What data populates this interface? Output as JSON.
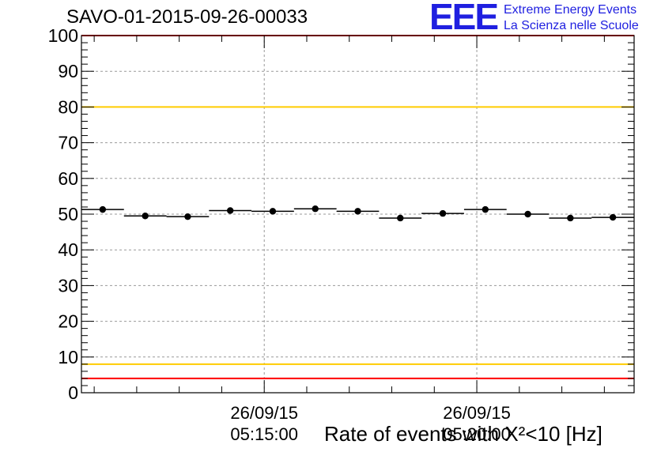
{
  "title": "SAVO-01-2015-09-26-00033",
  "brand": {
    "logo": "EEE",
    "line1": "Extreme Energy Events",
    "line2": "La Scienza nelle Scuole",
    "color": "#1f1fe0"
  },
  "axis_title": "Rate of events with X²<10 [Hz]",
  "chart_data": {
    "type": "scatter",
    "title": "SAVO-01-2015-09-26-00033",
    "xlabel": "",
    "ylabel": "Rate of events with X²<10 [Hz]",
    "ylim": [
      0,
      100
    ],
    "yticks": [
      0,
      10,
      20,
      30,
      40,
      50,
      60,
      70,
      80,
      90,
      100
    ],
    "xlim": [
      "05:10:42",
      "05:23:42"
    ],
    "xticks": [
      {
        "date": "26/09/15",
        "time": "05:15:00"
      },
      {
        "date": "26/09/15",
        "time": "05:20:00"
      }
    ],
    "grid": true,
    "bin_width_s": 60,
    "points": [
      {
        "x": "05:11:12",
        "y": 51.3
      },
      {
        "x": "05:12:12",
        "y": 49.5
      },
      {
        "x": "05:13:12",
        "y": 49.3
      },
      {
        "x": "05:14:12",
        "y": 51.0
      },
      {
        "x": "05:15:12",
        "y": 50.8
      },
      {
        "x": "05:16:12",
        "y": 51.5
      },
      {
        "x": "05:17:12",
        "y": 50.8
      },
      {
        "x": "05:18:12",
        "y": 48.9
      },
      {
        "x": "05:19:12",
        "y": 50.2
      },
      {
        "x": "05:20:12",
        "y": 51.3
      },
      {
        "x": "05:21:12",
        "y": 50.0
      },
      {
        "x": "05:22:12",
        "y": 48.9
      },
      {
        "x": "05:23:12",
        "y": 49.1
      }
    ],
    "reference_lines": [
      {
        "y": 100,
        "color": "#ff0000"
      },
      {
        "y": 80,
        "color": "#ffcc00"
      },
      {
        "y": 8,
        "color": "#ffcc00"
      },
      {
        "y": 4,
        "color": "#ff0000"
      }
    ]
  }
}
